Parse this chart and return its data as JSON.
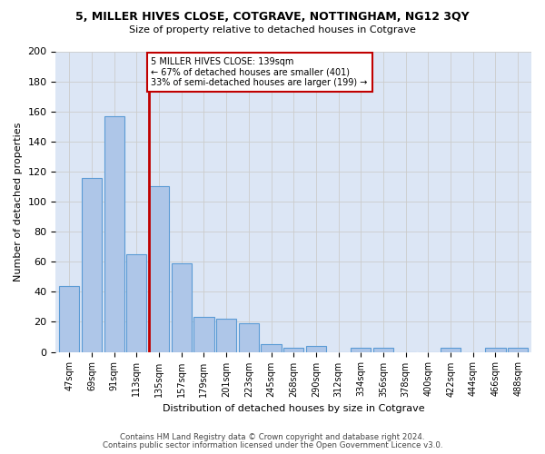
{
  "title1": "5, MILLER HIVES CLOSE, COTGRAVE, NOTTINGHAM, NG12 3QY",
  "title2": "Size of property relative to detached houses in Cotgrave",
  "xlabel": "Distribution of detached houses by size in Cotgrave",
  "ylabel": "Number of detached properties",
  "categories": [
    "47sqm",
    "69sqm",
    "91sqm",
    "113sqm",
    "135sqm",
    "157sqm",
    "179sqm",
    "201sqm",
    "223sqm",
    "245sqm",
    "268sqm",
    "290sqm",
    "312sqm",
    "334sqm",
    "356sqm",
    "378sqm",
    "400sqm",
    "422sqm",
    "444sqm",
    "466sqm",
    "488sqm"
  ],
  "values": [
    44,
    116,
    157,
    65,
    110,
    59,
    23,
    22,
    19,
    5,
    3,
    4,
    0,
    3,
    3,
    0,
    0,
    3,
    0,
    3,
    3
  ],
  "bar_color": "#aec6e8",
  "bar_edge_color": "#5b9bd5",
  "highlight_color": "#c00000",
  "annotation_text": "5 MILLER HIVES CLOSE: 139sqm\n← 67% of detached houses are smaller (401)\n33% of semi-detached houses are larger (199) →",
  "ylim": [
    0,
    200
  ],
  "yticks": [
    0,
    20,
    40,
    60,
    80,
    100,
    120,
    140,
    160,
    180,
    200
  ],
  "footer1": "Contains HM Land Registry data © Crown copyright and database right 2024.",
  "footer2": "Contains public sector information licensed under the Open Government Licence v3.0.",
  "bg_color": "#ffffff",
  "grid_color": "#cccccc",
  "ax_bg_color": "#dce6f5"
}
